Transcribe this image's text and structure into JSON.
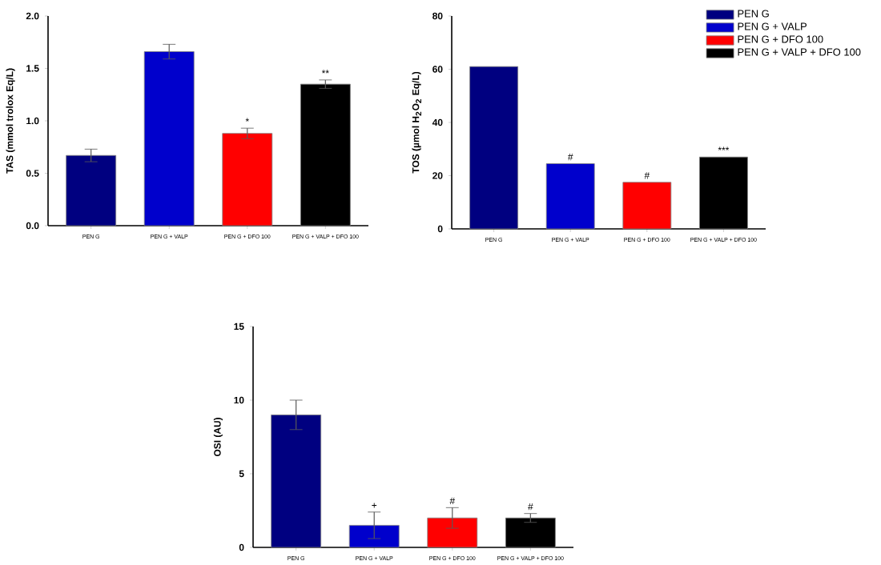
{
  "chart_data": [
    {
      "type": "bar",
      "ylabel": "TAS (mmol trolox Eq/L)",
      "categories": [
        "PEN G",
        "PEN G + VALP",
        "PEN G + DFO 100",
        "PEN G + VALP + DFO 100"
      ],
      "values": [
        0.67,
        1.66,
        0.88,
        1.35
      ],
      "errors": [
        0.06,
        0.07,
        0.05,
        0.04
      ],
      "colors": [
        "#000080",
        "#0000cc",
        "#ff0000",
        "#000000"
      ],
      "ylim": [
        0,
        2
      ],
      "yticks": [
        {
          "value": 0,
          "label": "0.0"
        },
        {
          "value": 0.5,
          "label": "0.5"
        },
        {
          "value": 1,
          "label": "1.0"
        },
        {
          "value": 1.5,
          "label": "1.5"
        },
        {
          "value": 2,
          "label": "2.0"
        }
      ],
      "annotations": [
        {
          "text": "*",
          "x": "PEN G + DFO 100",
          "y": 0.93
        },
        {
          "text": "**",
          "x": "PEN G + VALP + DFO 100",
          "y": 1.39
        }
      ]
    },
    {
      "type": "bar",
      "ylabel": "TOS (µmol H$_{2}$O$_{2}$ Eq/L)",
      "categories": [
        "PEN G",
        "PEN G + VALP",
        "PEN G + DFO 100",
        "PEN G + VALP + DFO 100"
      ],
      "series": [
        {
          "name": "PEN G",
          "color": "#000080",
          "values": [
            61,
            null,
            null,
            null
          ]
        },
        {
          "name": "PEN G + VALP",
          "color": "#0000cc",
          "values": [
            null,
            24.5,
            null,
            null
          ]
        },
        {
          "name": "PEN G + DFO 100",
          "color": "#ff0000",
          "values": [
            null,
            null,
            17.5,
            null
          ]
        },
        {
          "name": "PEN G + VALP + DFO 100",
          "color": "#000000",
          "values": [
            null,
            null,
            null,
            27
          ]
        }
      ],
      "ylim": [
        0,
        80
      ],
      "yticks": [
        0,
        20,
        40,
        60,
        80
      ],
      "legend": "top right",
      "annotations": [
        {
          "text": "#",
          "x": "PEN G + VALP",
          "y": 24.5
        },
        {
          "text": "#",
          "x": "PEN G + DFO 100",
          "y": 17.5
        },
        {
          "text": "***",
          "x": "PEN G + VALP + DFO 100",
          "y": 27
        }
      ]
    },
    {
      "type": "bar",
      "ylabel": "OSI (AU)",
      "categories": [
        "PEN G",
        "PEN G + VALP",
        "PEN G + DFO 100",
        "PEN G + VALP + DFO 100"
      ],
      "values": [
        9,
        1.5,
        2,
        2
      ],
      "errors": [
        1,
        0.9,
        0.7,
        0.3
      ],
      "colors": [
        "#000080",
        "#0000cc",
        "#ff0000",
        "#000000"
      ],
      "ylim": [
        0,
        15
      ],
      "yticks": [
        0,
        5,
        10,
        15
      ],
      "annotations": [
        {
          "text": "+",
          "x": "PEN G + VALP",
          "y": 2.4
        },
        {
          "text": "#",
          "x": "PEN G + DFO 100",
          "y": 2.7
        },
        {
          "text": "#",
          "x": "PEN G + VALP + DFO 100",
          "y": 2.3
        }
      ]
    }
  ]
}
